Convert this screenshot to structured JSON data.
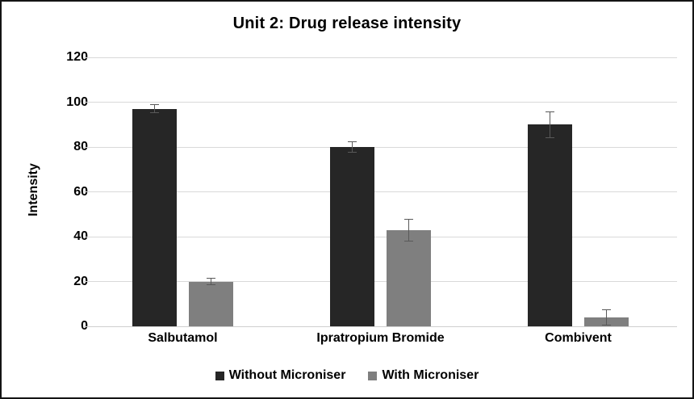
{
  "chart_data": {
    "type": "bar",
    "title": "Unit 2: Drug release intensity",
    "ylabel": "Intensity",
    "xlabel": "",
    "categories": [
      "Salbutamol",
      "Ipratropium Bromide",
      "Combivent"
    ],
    "series": [
      {
        "name": "Without Microniser",
        "color": "#262626",
        "values": [
          97,
          80,
          90
        ],
        "errors": [
          2,
          2.5,
          6
        ]
      },
      {
        "name": "With Microniser",
        "color": "#7f7f7f",
        "values": [
          20,
          43,
          4
        ],
        "errors": [
          1.5,
          5,
          3.5
        ]
      }
    ],
    "ylim": [
      0,
      120
    ],
    "yticks": [
      0,
      20,
      40,
      60,
      80,
      100,
      120
    ],
    "grid": true,
    "legend_position": "bottom",
    "colors": {
      "gridline": "#d9d9d9",
      "error_bar": "#595959",
      "text": "#000000",
      "frame_border": "#141414"
    }
  }
}
